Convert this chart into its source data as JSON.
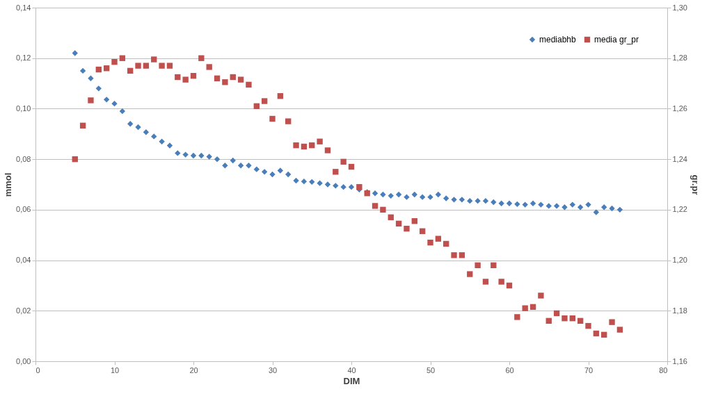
{
  "chart_data": {
    "type": "scatter",
    "xlabel": "DIM",
    "ylabel": "mmol",
    "y2label": "gr.pr",
    "xlim": [
      0,
      80
    ],
    "xticks": [
      0,
      10,
      20,
      30,
      40,
      50,
      60,
      70,
      80
    ],
    "ylim": [
      0,
      0.14
    ],
    "yticks": [
      {
        "value": 0,
        "label": "0,00"
      },
      {
        "value": 0.02,
        "label": "0,02"
      },
      {
        "value": 0.04,
        "label": "0,04"
      },
      {
        "value": 0.06,
        "label": "0,06"
      },
      {
        "value": 0.08,
        "label": "0,08"
      },
      {
        "value": 0.1,
        "label": "0,10"
      },
      {
        "value": 0.12,
        "label": "0,12"
      },
      {
        "value": 0.14,
        "label": "0,14"
      }
    ],
    "y2lim": [
      1.16,
      1.3
    ],
    "y2ticks": [
      {
        "value": 1.16,
        "label": "1,16"
      },
      {
        "value": 1.18,
        "label": "1,18"
      },
      {
        "value": 1.2,
        "label": "1,20"
      },
      {
        "value": 1.22,
        "label": "1,22"
      },
      {
        "value": 1.24,
        "label": "1,24"
      },
      {
        "value": 1.26,
        "label": "1,26"
      },
      {
        "value": 1.28,
        "label": "1,28"
      },
      {
        "value": 1.3,
        "label": "1,30"
      }
    ],
    "grid": "y",
    "legend": "top right",
    "x": [
      5,
      6,
      7,
      8,
      9,
      10,
      11,
      12,
      13,
      14,
      15,
      16,
      17,
      18,
      19,
      20,
      21,
      22,
      23,
      24,
      25,
      26,
      27,
      28,
      29,
      30,
      31,
      32,
      33,
      34,
      35,
      36,
      37,
      38,
      39,
      40,
      41,
      42,
      43,
      44,
      45,
      46,
      47,
      48,
      49,
      50,
      51,
      52,
      53,
      54,
      55,
      56,
      57,
      58,
      59,
      60,
      61,
      62,
      63,
      64,
      65,
      66,
      67,
      68,
      69,
      70,
      71,
      72,
      73,
      74
    ],
    "series": [
      {
        "name": "mediabhb",
        "color": "#4a7ebb",
        "marker": "diamond",
        "values": [
          0.122,
          0.115,
          0.112,
          0.108,
          0.1036,
          0.102,
          0.099,
          0.094,
          0.0927,
          0.0907,
          0.089,
          0.087,
          0.0854,
          0.0824,
          0.0818,
          0.0814,
          0.0814,
          0.081,
          0.08,
          0.0775,
          0.0795,
          0.0775,
          0.0775,
          0.076,
          0.075,
          0.074,
          0.0755,
          0.074,
          0.0715,
          0.0712,
          0.071,
          0.0705,
          0.07,
          0.0695,
          0.069,
          0.069,
          0.068,
          0.067,
          0.0665,
          0.066,
          0.0655,
          0.066,
          0.065,
          0.066,
          0.065,
          0.065,
          0.066,
          0.0645,
          0.064,
          0.064,
          0.0635,
          0.0635,
          0.0635,
          0.063,
          0.0625,
          0.0625,
          0.0622,
          0.062,
          0.0625,
          0.062,
          0.0615,
          0.0615,
          0.061,
          0.062,
          0.061,
          0.062,
          0.059,
          0.061,
          0.0605,
          0.06
        ]
      },
      {
        "name": "media gr_pr",
        "color": "#c0504d",
        "marker": "square",
        "axis": "y2",
        "values": [
          1.24,
          1.2533,
          1.2633,
          1.2755,
          1.276,
          1.2785,
          1.28,
          1.275,
          1.277,
          1.277,
          1.2795,
          1.277,
          1.277,
          1.2725,
          1.2715,
          1.273,
          1.28,
          1.2765,
          1.272,
          1.2705,
          1.2725,
          1.2715,
          1.2695,
          1.261,
          1.263,
          1.256,
          1.265,
          1.255,
          1.2455,
          1.245,
          1.2455,
          1.247,
          1.2435,
          1.235,
          1.239,
          1.237,
          1.229,
          1.2265,
          1.2215,
          1.22,
          1.217,
          1.2145,
          1.2125,
          1.2155,
          1.2115,
          1.207,
          1.2085,
          1.2065,
          1.202,
          1.202,
          1.1945,
          1.198,
          1.1915,
          1.198,
          1.1915,
          1.19,
          1.1775,
          1.181,
          1.1815,
          1.186,
          1.176,
          1.179,
          1.177,
          1.177,
          1.176,
          1.174,
          1.171,
          1.1705,
          1.1755,
          1.1725
        ]
      }
    ]
  }
}
